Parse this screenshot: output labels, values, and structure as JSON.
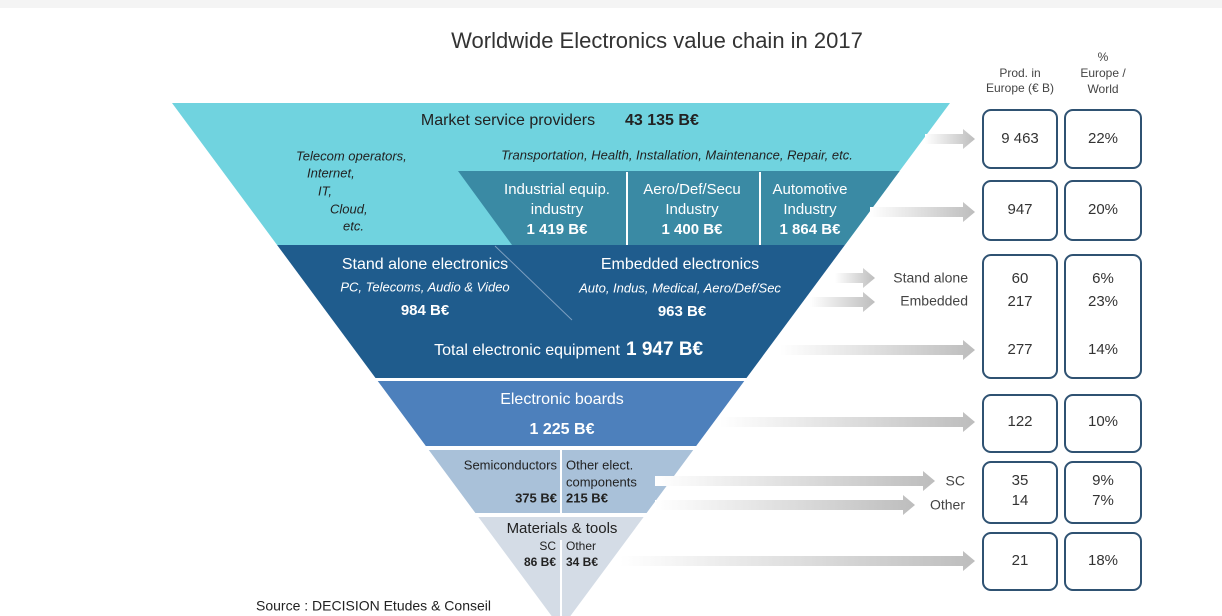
{
  "title": "Worldwide Electronics value chain in 2017",
  "headers": {
    "prod": [
      "Prod. in",
      "Europe (€ B)"
    ],
    "share": [
      "%",
      "Europe /",
      "World"
    ]
  },
  "pyramid": {
    "market": {
      "label": "Market service providers",
      "value": "43 135 B€",
      "telecom": [
        "Telecom operators,",
        "Internet,",
        "IT,",
        "Cloud,",
        "etc."
      ],
      "other": "Transportation, Health, Installation, Maintenance, Repair, etc."
    },
    "industries": [
      {
        "label": [
          "Industrial equip.",
          "industry"
        ],
        "value": "1 419 B€"
      },
      {
        "label": [
          "Aero/Def/Secu",
          "Industry"
        ],
        "value": "1 400 B€"
      },
      {
        "label": [
          "Automotive",
          "Industry"
        ],
        "value": "1 864 B€"
      }
    ],
    "standalone": {
      "label": "Stand alone electronics",
      "sub": "PC, Telecoms, Audio & Video",
      "value": "984 B€"
    },
    "embedded": {
      "label": "Embedded electronics",
      "sub": "Auto, Indus, Medical, Aero/Def/Sec",
      "value": "963 B€"
    },
    "total": {
      "label": "Total electronic equipment",
      "value": "1 947 B€"
    },
    "boards": {
      "label": "Electronic boards",
      "value": "1 225 B€"
    },
    "semis": {
      "label": "Semiconductors",
      "value": "375 B€"
    },
    "components": {
      "label": [
        "Other elect.",
        "components"
      ],
      "value": "215 B€"
    },
    "materials": {
      "label": "Materials & tools",
      "sc": "SC",
      "sc_value": "86 B€",
      "other": "Other",
      "other_value": "34 B€"
    }
  },
  "europe_table": {
    "rows": [
      {
        "prod": "9 463",
        "share": "22%"
      },
      {
        "prod": "947",
        "share": "20%"
      },
      {
        "label": "Stand alone",
        "prod": "60",
        "share": "6%"
      },
      {
        "label": "Embedded",
        "prod": "217",
        "share": "23%"
      },
      {
        "prod": "277",
        "share": "14%"
      },
      {
        "prod": "122",
        "share": "10%"
      },
      {
        "label": "SC",
        "prod": "35",
        "share": "9%"
      },
      {
        "label": "Other",
        "prod": "14",
        "share": "7%"
      },
      {
        "prod": "21",
        "share": "18%"
      }
    ]
  },
  "source": "Source : DECISION Etudes & Conseil"
}
